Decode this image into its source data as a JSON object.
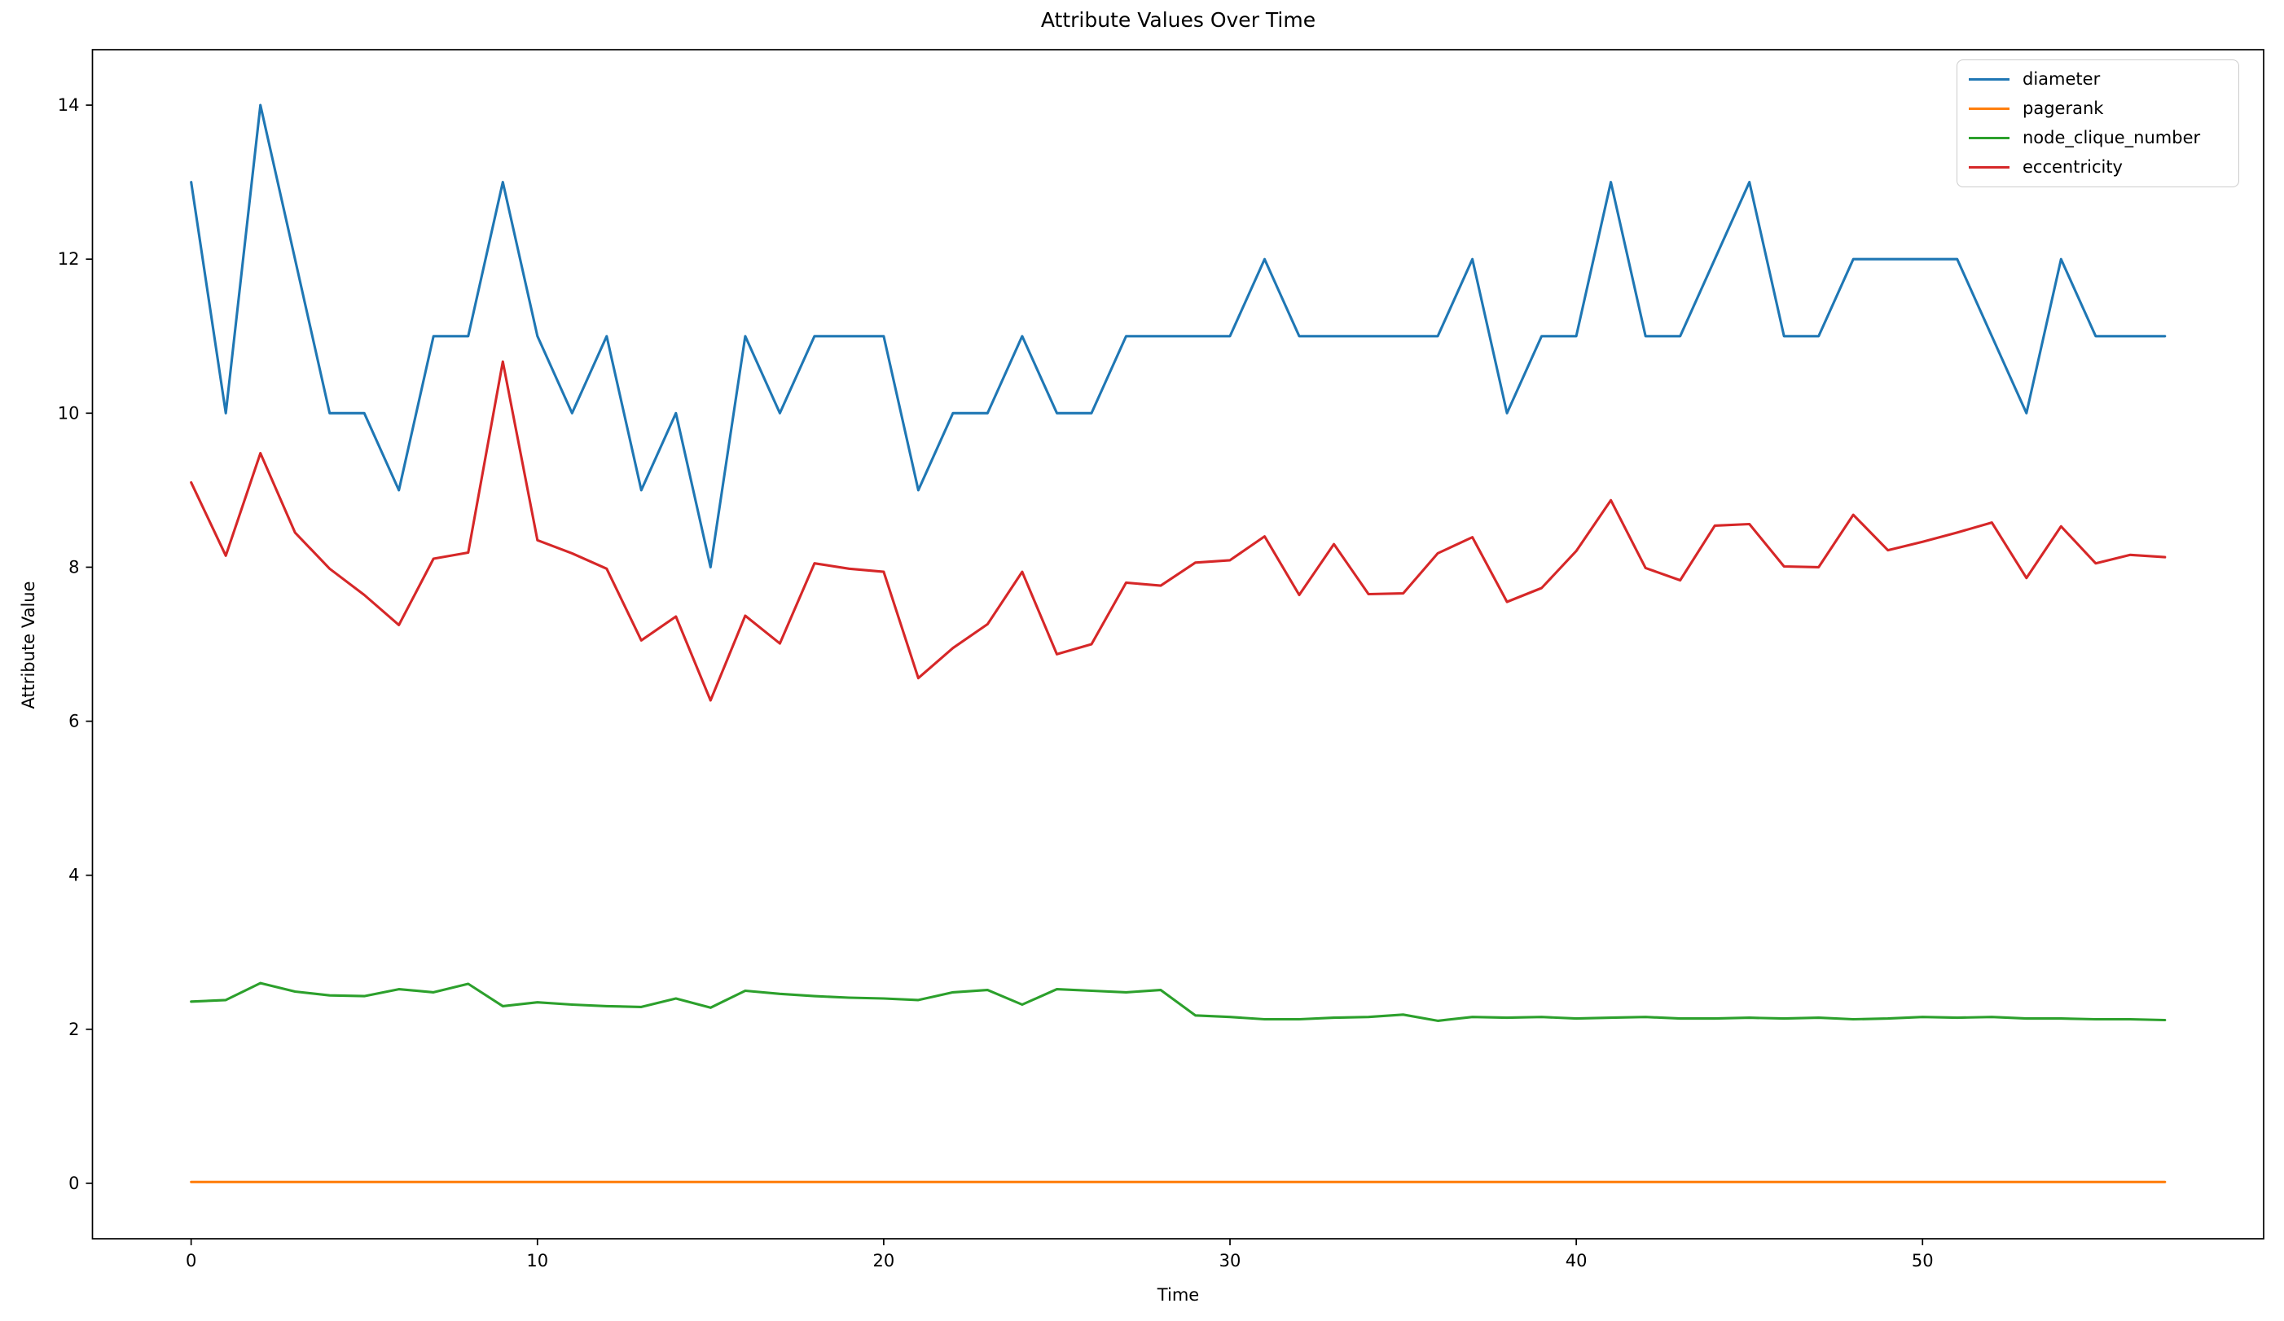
{
  "title": "Attribute Values Over Time",
  "xlabel": "Time",
  "ylabel": "Attribute Value",
  "chart_data": {
    "type": "line",
    "title": "Attribute Values Over Time",
    "xlabel": "Time",
    "ylabel": "Attribute Value",
    "grid": false,
    "legend_position": "upper right",
    "xlim": [
      -2.85,
      59.85
    ],
    "ylim": [
      -0.72,
      14.72
    ],
    "xticks": [
      0,
      10,
      20,
      30,
      40,
      50
    ],
    "yticks": [
      0,
      2,
      4,
      6,
      8,
      10,
      12,
      14
    ],
    "x": [
      0,
      1,
      2,
      3,
      4,
      5,
      6,
      7,
      8,
      9,
      10,
      11,
      12,
      13,
      14,
      15,
      16,
      17,
      18,
      19,
      20,
      21,
      22,
      23,
      24,
      25,
      26,
      27,
      28,
      29,
      30,
      31,
      32,
      33,
      34,
      35,
      36,
      37,
      38,
      39,
      40,
      41,
      42,
      43,
      44,
      45,
      46,
      47,
      48,
      49,
      50,
      51,
      52,
      53,
      54,
      55,
      56,
      57
    ],
    "series": [
      {
        "name": "diameter",
        "color": "#1f77b4",
        "values": [
          13,
          10,
          14,
          12,
          10,
          10,
          9,
          11,
          11,
          13,
          11,
          10,
          11,
          9,
          10,
          8,
          11,
          10,
          11,
          11,
          11,
          9,
          10,
          10,
          11,
          10,
          10,
          11,
          11,
          11,
          11,
          12,
          11,
          11,
          11,
          11,
          11,
          12,
          10,
          11,
          11,
          13,
          11,
          11,
          12,
          13,
          11,
          11,
          12,
          12,
          12,
          12,
          11,
          10,
          12,
          11,
          11,
          11
        ]
      },
      {
        "name": "pagerank",
        "color": "#ff7f0e",
        "values": [
          0.017,
          0.017,
          0.017,
          0.017,
          0.017,
          0.017,
          0.017,
          0.017,
          0.017,
          0.017,
          0.017,
          0.017,
          0.017,
          0.017,
          0.017,
          0.017,
          0.017,
          0.017,
          0.017,
          0.017,
          0.017,
          0.017,
          0.017,
          0.017,
          0.017,
          0.017,
          0.017,
          0.017,
          0.017,
          0.017,
          0.017,
          0.017,
          0.017,
          0.017,
          0.017,
          0.017,
          0.017,
          0.017,
          0.017,
          0.017,
          0.017,
          0.017,
          0.017,
          0.017,
          0.017,
          0.017,
          0.017,
          0.017,
          0.017,
          0.017,
          0.017,
          0.017,
          0.017,
          0.017,
          0.017,
          0.017,
          0.017,
          0.017
        ]
      },
      {
        "name": "node_clique_number",
        "color": "#2ca02c",
        "values": [
          2.36,
          2.38,
          2.6,
          2.49,
          2.44,
          2.43,
          2.52,
          2.48,
          2.59,
          2.3,
          2.35,
          2.32,
          2.3,
          2.29,
          2.4,
          2.28,
          2.5,
          2.46,
          2.43,
          2.41,
          2.4,
          2.38,
          2.48,
          2.51,
          2.32,
          2.52,
          2.5,
          2.48,
          2.51,
          2.18,
          2.16,
          2.13,
          2.13,
          2.15,
          2.16,
          2.19,
          2.11,
          2.16,
          2.15,
          2.16,
          2.14,
          2.15,
          2.16,
          2.14,
          2.14,
          2.15,
          2.14,
          2.15,
          2.13,
          2.14,
          2.16,
          2.15,
          2.16,
          2.14,
          2.14,
          2.13,
          2.13,
          2.12
        ]
      },
      {
        "name": "eccentricity",
        "color": "#d62728",
        "values": [
          9.1,
          8.15,
          9.48,
          8.45,
          7.98,
          7.64,
          7.25,
          8.11,
          8.19,
          10.67,
          8.35,
          8.18,
          7.98,
          7.05,
          7.36,
          6.27,
          7.37,
          7.01,
          8.05,
          7.98,
          7.94,
          6.56,
          6.95,
          7.26,
          7.94,
          6.87,
          7.0,
          7.8,
          7.76,
          8.06,
          8.09,
          8.4,
          7.64,
          8.3,
          7.65,
          7.66,
          8.18,
          8.39,
          7.55,
          7.73,
          8.21,
          8.87,
          7.99,
          7.83,
          8.54,
          8.56,
          8.01,
          8.0,
          8.68,
          8.22,
          8.33,
          8.45,
          8.58,
          7.86,
          8.53,
          8.05,
          8.16,
          8.13
        ]
      }
    ]
  }
}
